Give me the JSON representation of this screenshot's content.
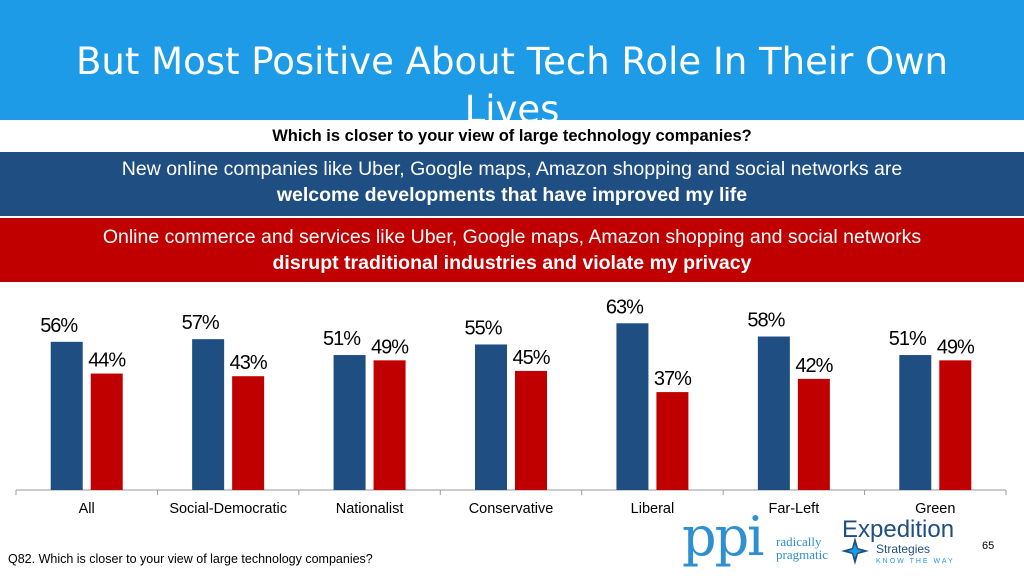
{
  "title": "But Most Positive About Tech Role In Their Own Lives",
  "question": "Which is closer to your view of large technology companies?",
  "options": {
    "positive_line1": "New online companies like Uber, Google maps, Amazon shopping and social networks are",
    "positive_line2": "welcome developments that have improved my life",
    "negative_line1": "Online commerce and services like Uber, Google maps, Amazon shopping and social networks",
    "negative_line2": "disrupt traditional industries and violate my privacy"
  },
  "colors": {
    "title_bg": "#1e9be6",
    "blue": "#1f4e83",
    "red": "#c00000"
  },
  "chart_data": {
    "type": "bar",
    "categories": [
      "All",
      "Social-Democratic",
      "Nationalist",
      "Conservative",
      "Liberal",
      "Far-Left",
      "Green"
    ],
    "series": [
      {
        "values": [
          56,
          57,
          51,
          55,
          63,
          58,
          51
        ],
        "color": "#1f4e83"
      },
      {
        "values": [
          44,
          43,
          49,
          45,
          37,
          42,
          49
        ],
        "color": "#c00000"
      }
    ],
    "value_suffix": "%",
    "ylim": [
      0,
      65
    ],
    "grid": false,
    "legend": "none"
  },
  "footer": {
    "footnote": "Q82. Which is closer to your view of large technology companies?",
    "page_number": "65",
    "ppi_logo_text": "ppi",
    "ppi_tagline_1": "radically",
    "ppi_tagline_2": "pragmatic",
    "expedition_name": "Expedition",
    "expedition_sub": "Strategies",
    "expedition_tagline": "KNOW THE WAY"
  }
}
